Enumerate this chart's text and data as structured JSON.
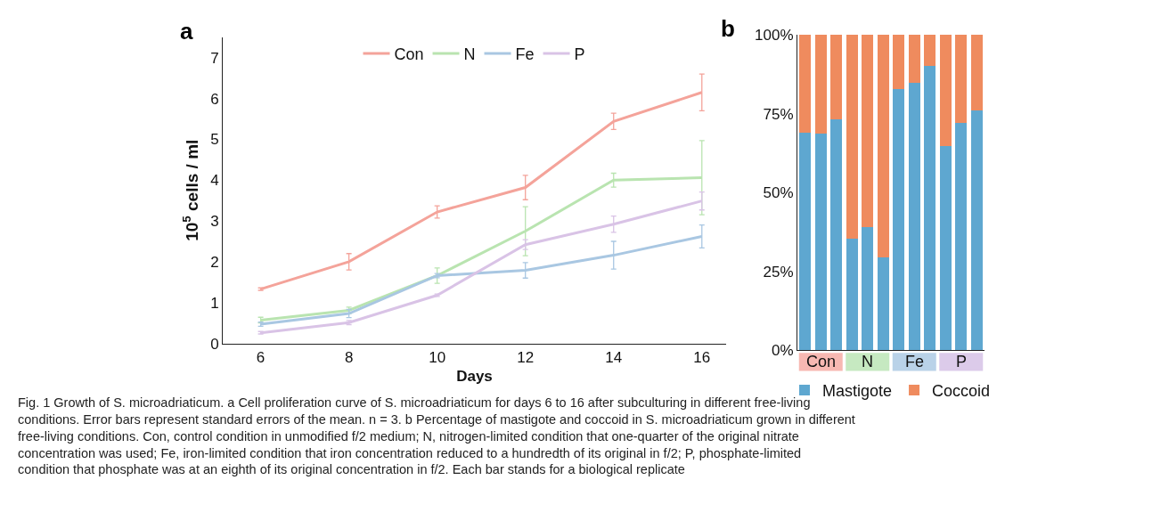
{
  "chart_data": [
    {
      "type": "line",
      "title": "a",
      "xlabel": "Days",
      "ylabel": "10$^{5}$ cells / ml",
      "x": [
        6,
        8,
        10,
        12,
        14,
        16
      ],
      "xlim": [
        5.14,
        16.55
      ],
      "xticks": [
        6,
        8,
        10,
        12,
        14,
        16
      ],
      "ylim": [
        0,
        7.5
      ],
      "yticks": [
        0,
        1,
        2,
        3,
        4,
        5,
        6,
        7
      ],
      "grid": false,
      "legend": "top",
      "line_style": "solid",
      "series": [
        {
          "name": "Con",
          "color": "#f4a39a",
          "values": [
            1.33,
            2.0,
            3.22,
            3.82,
            5.44,
            6.15
          ],
          "errors": [
            0.03,
            0.2,
            0.15,
            0.3,
            0.2,
            0.45
          ]
        },
        {
          "name": "N",
          "color": "#b9e4b0",
          "values": [
            0.57,
            0.81,
            1.66,
            2.75,
            4.0,
            4.06
          ],
          "errors": [
            0.07,
            0.08,
            0.19,
            0.6,
            0.17,
            0.91
          ]
        },
        {
          "name": "Fe",
          "color": "#a9c7e2",
          "values": [
            0.47,
            0.73,
            1.66,
            1.79,
            2.16,
            2.62
          ],
          "errors": [
            0.05,
            0.1,
            0.05,
            0.19,
            0.34,
            0.28
          ]
        },
        {
          "name": "P",
          "color": "#d9c3e6",
          "values": [
            0.26,
            0.51,
            1.18,
            2.42,
            2.92,
            3.49
          ],
          "errors": [
            0.03,
            0.05,
            0.03,
            0.12,
            0.2,
            0.22
          ]
        }
      ],
      "annotations": [
        "Fig. 1 Growth of S. microadriaticum. a Cell proliferation curve of S. microadriaticum for days 6 to 16 after subculturing in different free-living conditions. Error bars represent standard errors of the mean. n = 3. b Percentage of mastigote and coccoid in S. microadriaticum grown in different free-living conditions. Con, control condition in unmodified f/2 medium; N, nitrogen-limited condition that one-quarter of the original nitrate concentration was used; Fe, iron-limited condition that iron concentration reduced to a hundredth of its original in f/2; P, phosphate-limited condition that phosphate was at an eighth of its original concentration in f/2. Each bar stands for a biological replicate"
      ]
    },
    {
      "type": "bar",
      "title": "b",
      "stacked": true,
      "categories": [
        null,
        null,
        null,
        null,
        null,
        null,
        null,
        null,
        null,
        null,
        null,
        null
      ],
      "ylim": [
        0,
        100
      ],
      "yticks": [
        {
          "value": 0,
          "label": "0%"
        },
        {
          "value": 25,
          "label": "25%"
        },
        {
          "value": 50,
          "label": "50%"
        },
        {
          "value": 75,
          "label": "75%"
        },
        {
          "value": 100,
          "label": "100%"
        }
      ],
      "grid": false,
      "legend": "bottom",
      "series": [
        {
          "name": "Mastigote",
          "color": "#5ea7d0",
          "values": [
            68.9,
            68.6,
            73.1,
            35.4,
            39.1,
            29.4,
            82.9,
            84.7,
            90.0,
            64.6,
            72.0,
            76.0
          ]
        },
        {
          "name": "Coccoid",
          "color": "#ef8b5e",
          "values": [
            31.1,
            31.4,
            26.9,
            64.6,
            60.9,
            70.6,
            17.1,
            15.3,
            10.0,
            35.4,
            28.0,
            24.0
          ]
        }
      ],
      "annotations": [
        "Con",
        "N",
        "Fe",
        "P"
      ]
    }
  ]
}
